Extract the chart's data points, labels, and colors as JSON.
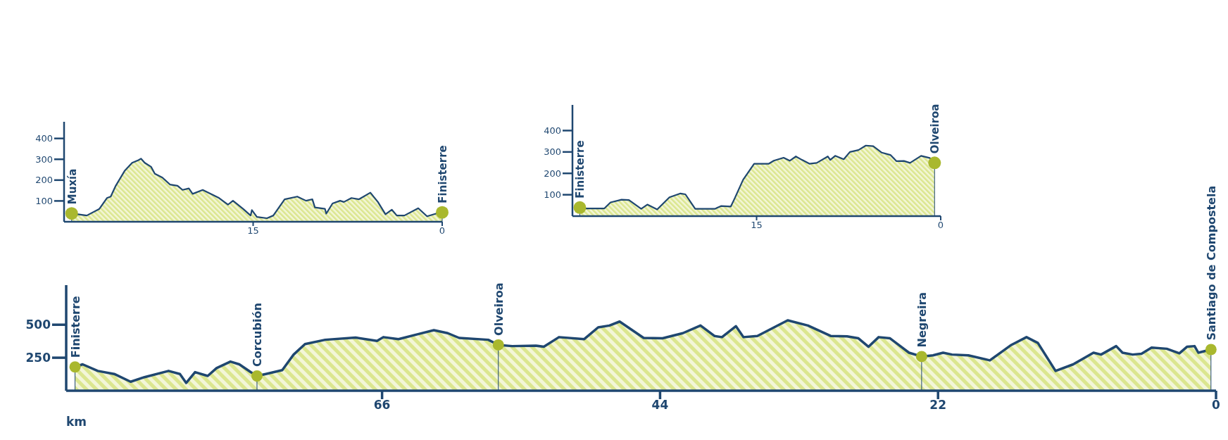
{
  "chart_data": [
    {
      "type": "area",
      "color": "#dbe68f",
      "xlim": [
        30,
        0
      ],
      "ylim": [
        0,
        480
      ],
      "xticks": [
        15,
        0
      ],
      "yticks": [
        100,
        200,
        300,
        400
      ],
      "grid": false,
      "legend": false,
      "x": [
        29.4,
        28.2,
        27.2,
        26.6,
        26.3,
        25.9,
        25.2,
        24.6,
        24.1,
        23.9,
        23.6,
        23.1,
        22.8,
        22.2,
        21.6,
        21.0,
        20.6,
        20.1,
        19.8,
        19.0,
        17.7,
        17.0,
        16.6,
        15.8,
        15.2,
        15.1,
        14.7,
        13.9,
        13.4,
        12.5,
        11.5,
        10.8,
        10.3,
        10.1,
        9.3,
        9.2,
        8.7,
        8.1,
        7.8,
        7.2,
        6.6,
        5.7,
        5.1,
        4.5,
        4.0,
        3.6,
        3.0,
        1.9,
        1.2,
        0.5,
        0
      ],
      "values": [
        40,
        30,
        62,
        114,
        121,
        173,
        244,
        283,
        296,
        303,
        283,
        264,
        231,
        212,
        179,
        173,
        153,
        160,
        134,
        153,
        114,
        82,
        101,
        62,
        30,
        56,
        23,
        17,
        30,
        108,
        121,
        101,
        108,
        69,
        62,
        39,
        88,
        101,
        95,
        114,
        108,
        140,
        95,
        36,
        58,
        30,
        30,
        65,
        26,
        39,
        45
      ],
      "annotations": [
        {
          "text": "Muxía",
          "x": 29.4,
          "y": 40
        },
        {
          "text": "Finisterre",
          "x": 0,
          "y": 45
        }
      ]
    },
    {
      "type": "area",
      "color": "#dbe68f",
      "xlim": [
        30,
        0
      ],
      "ylim": [
        0,
        520
      ],
      "xticks": [
        15,
        0
      ],
      "yticks": [
        100,
        200,
        300,
        400
      ],
      "grid": false,
      "legend": false,
      "x": [
        29.4,
        27.4,
        26.9,
        26.0,
        25.4,
        24.4,
        23.9,
        23.1,
        22.1,
        21.2,
        20.8,
        20.0,
        18.4,
        17.9,
        17.1,
        16.8,
        16.1,
        15.2,
        14.0,
        13.6,
        12.8,
        12.3,
        11.8,
        11.3,
        10.7,
        10.1,
        9.2,
        9.0,
        8.6,
        7.9,
        7.4,
        6.7,
        6.1,
        5.5,
        4.8,
        4.1,
        3.6,
        3.0,
        2.5,
        1.6,
        0.9,
        0.5
      ],
      "values": [
        36,
        36,
        64,
        77,
        75,
        34,
        54,
        31,
        88,
        106,
        102,
        34,
        34,
        47,
        45,
        81,
        170,
        245,
        245,
        259,
        273,
        259,
        279,
        263,
        245,
        249,
        279,
        263,
        282,
        266,
        300,
        309,
        330,
        327,
        297,
        286,
        257,
        258,
        249,
        282,
        272,
        249
      ],
      "annotations": [
        {
          "text": "Finisterre",
          "x": 29.4,
          "y": 40
        },
        {
          "text": "Olveiroa",
          "x": 0.5,
          "y": 249
        }
      ]
    },
    {
      "type": "area",
      "color": "#dbe68f",
      "xlim": [
        91,
        0
      ],
      "ylim": [
        0,
        800
      ],
      "xticks": [
        66,
        44,
        22,
        0
      ],
      "yticks": [
        250,
        500
      ],
      "xlabel": "km",
      "grid": false,
      "legend": false,
      "x": [
        90.3,
        89.7,
        88.5,
        87.2,
        85.9,
        84.8,
        82.9,
        82.0,
        81.5,
        80.8,
        79.8,
        79.1,
        78.0,
        77.3,
        76.4,
        75.9,
        75.2,
        73.9,
        73.0,
        72.1,
        70.5,
        68.1,
        66.4,
        65.9,
        64.7,
        63.1,
        61.9,
        60.8,
        59.9,
        57.6,
        56.8,
        55.7,
        53.8,
        53.2,
        52.0,
        50.0,
        48.9,
        48.0,
        47.2,
        45.3,
        43.8,
        42.2,
        40.8,
        39.7,
        39.1,
        38.0,
        37.4,
        36.3,
        33.9,
        32.3,
        30.5,
        29.2,
        28.3,
        27.5,
        26.7,
        25.8,
        24.3,
        23.3,
        22.4,
        21.6,
        20.9,
        19.6,
        17.9,
        16.2,
        15.0,
        14.1,
        12.7,
        11.3,
        9.7,
        9.1,
        7.9,
        7.4,
        6.6,
        5.9,
        5.1,
        3.9,
        2.9,
        2.3,
        1.7,
        1.4,
        0.4
      ],
      "values": [
        180,
        200,
        150,
        127,
        68,
        103,
        150,
        127,
        59,
        141,
        112,
        171,
        221,
        200,
        141,
        112,
        127,
        156,
        274,
        353,
        386,
        403,
        377,
        406,
        391,
        430,
        459,
        436,
        400,
        386,
        347,
        338,
        341,
        333,
        406,
        391,
        480,
        494,
        524,
        400,
        397,
        436,
        494,
        415,
        406,
        489,
        406,
        415,
        533,
        494,
        415,
        412,
        397,
        333,
        406,
        397,
        288,
        259,
        268,
        288,
        274,
        268,
        230,
        347,
        406,
        362,
        150,
        200,
        288,
        274,
        338,
        288,
        274,
        280,
        327,
        318,
        283,
        333,
        338,
        288,
        312
      ],
      "annotations": [
        {
          "text": "Finisterre",
          "x": 90.3,
          "y": 180
        },
        {
          "text": "Corcubión",
          "x": 75.9,
          "y": 112
        },
        {
          "text": "Olveiroa",
          "x": 56.8,
          "y": 347
        },
        {
          "text": "Negreira",
          "x": 23.3,
          "y": 259
        },
        {
          "text": "Santiago de Compostela",
          "x": 0.4,
          "y": 312
        }
      ]
    }
  ]
}
